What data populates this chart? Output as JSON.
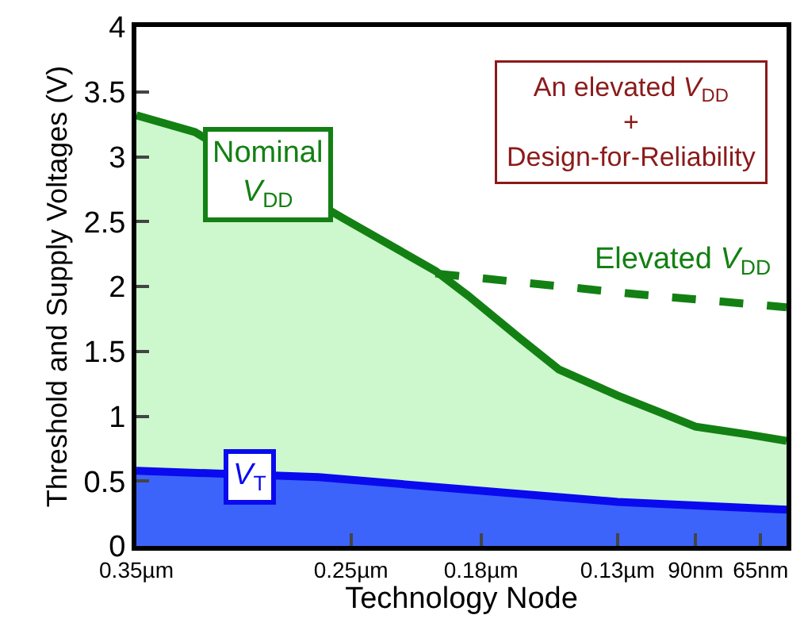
{
  "chart_data": {
    "type": "area",
    "xlabel": "Technology Node",
    "ylabel": "Threshold and Supply Voltages (V)",
    "categories": [
      "0.35µm",
      null,
      null,
      null,
      null,
      null,
      null,
      null,
      null,
      null,
      null,
      null,
      null,
      null,
      null,
      null,
      null,
      null,
      null,
      null,
      null,
      null,
      null,
      null,
      null,
      null,
      null,
      null,
      null,
      null,
      null,
      null,
      null,
      "0.25µm",
      null,
      null,
      null,
      null,
      null,
      null,
      null,
      null,
      null,
      null,
      null,
      null,
      null,
      null,
      null,
      null,
      null,
      null,
      null,
      "0.18µm",
      null,
      null,
      null,
      null,
      null,
      null,
      null,
      null,
      null,
      null,
      null,
      null,
      null,
      null,
      null,
      null,
      null,
      null,
      null,
      null,
      "0.13µm",
      null,
      null,
      null,
      null,
      null,
      null,
      null,
      null,
      null,
      null,
      null,
      "90nm",
      null,
      null,
      null,
      null,
      null,
      null,
      null,
      null,
      null,
      "65nm",
      null,
      null,
      null,
      null
    ],
    "ylim": [
      0,
      4
    ],
    "yticks": [
      0,
      0.5,
      1,
      1.5,
      2,
      2.5,
      3,
      3.5,
      4
    ],
    "series": [
      {
        "name": "Nominal V$_{DD}$",
        "color": "#138013",
        "values": [
          3.32,
          null,
          null,
          null,
          null,
          null,
          null,
          null,
          null,
          3.19,
          null,
          null,
          null,
          null,
          null,
          null,
          null,
          null,
          null,
          null,
          null,
          null,
          null,
          null,
          null,
          null,
          null,
          null,
          null,
          null,
          null,
          null,
          2.52,
          null,
          null,
          null,
          null,
          null,
          null,
          null,
          null,
          null,
          null,
          null,
          null,
          null,
          2.12,
          null,
          null,
          null,
          null,
          1.93,
          null,
          null,
          null,
          null,
          null,
          null,
          null,
          1.6,
          null,
          null,
          null,
          null,
          null,
          1.36,
          null,
          null,
          null,
          null,
          null,
          null,
          null,
          null,
          1.16,
          null,
          null,
          null,
          null,
          null,
          1.04,
          null,
          null,
          null,
          null,
          null,
          0.92,
          null,
          null,
          null,
          null,
          null,
          null,
          null,
          0.86,
          null,
          null,
          null,
          null,
          null,
          0.81
        ]
      },
      {
        "name": "Elevated V$_{DD}$",
        "type": "line",
        "line_style": "dashed",
        "color": "#138013",
        "values": [
          null,
          null,
          null,
          null,
          null,
          null,
          null,
          null,
          null,
          null,
          null,
          null,
          null,
          null,
          null,
          null,
          null,
          null,
          null,
          null,
          null,
          null,
          null,
          null,
          null,
          null,
          null,
          null,
          null,
          null,
          null,
          null,
          null,
          null,
          null,
          null,
          null,
          null,
          null,
          null,
          null,
          null,
          null,
          null,
          null,
          null,
          2.1,
          null,
          null,
          null,
          null,
          null,
          null,
          null,
          null,
          null,
          null,
          null,
          null,
          null,
          null,
          null,
          null,
          null,
          null,
          null,
          null,
          null,
          null,
          null,
          null,
          null,
          null,
          null,
          null,
          null,
          null,
          1.94,
          null,
          null,
          null,
          null,
          null,
          null,
          null,
          null,
          null,
          null,
          null,
          null,
          null,
          null,
          null,
          null,
          null,
          null,
          null,
          null,
          null,
          null,
          1.84
        ]
      },
      {
        "name": "V$_{T}$",
        "color": "#0a0aee",
        "values": [
          0.58,
          null,
          null,
          null,
          null,
          null,
          null,
          null,
          null,
          null,
          null,
          null,
          null,
          null,
          null,
          null,
          null,
          null,
          null,
          null,
          null,
          null,
          null,
          null,
          null,
          null,
          null,
          null,
          0.53,
          null,
          null,
          null,
          null,
          null,
          null,
          null,
          null,
          null,
          null,
          null,
          null,
          null,
          null,
          null,
          null,
          null,
          null,
          null,
          null,
          null,
          null,
          null,
          0.43,
          null,
          null,
          null,
          null,
          null,
          null,
          null,
          null,
          null,
          null,
          null,
          null,
          null,
          null,
          null,
          null,
          null,
          null,
          null,
          null,
          null,
          0.34,
          null,
          null,
          null,
          null,
          null,
          null,
          null,
          null,
          null,
          null,
          null,
          null,
          null,
          null,
          null,
          null,
          null,
          null,
          null,
          null,
          null,
          null,
          null,
          null,
          null,
          0.28
        ]
      }
    ],
    "annotations": [
      "An elevated V$_{DD}$\n+\nDesign-for-Reliability"
    ],
    "legend": false
  }
}
